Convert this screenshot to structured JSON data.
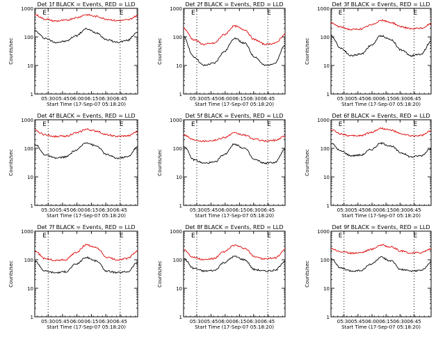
{
  "chart_data": [
    {
      "type": "line",
      "title": "Det 1f BLACK = Events, RED = LLD",
      "xlabel": "",
      "ylabel": "Counts/sec",
      "x_ticks": [
        "05:30",
        "05:45",
        "06:00",
        "06:15",
        "06:30",
        "06:45"
      ],
      "y_ticks": [
        "1",
        "10",
        "100",
        "1000"
      ],
      "y_scale": "log",
      "ylim": [
        1,
        1000
      ],
      "annotations": [
        "E",
        "E"
      ],
      "series": [
        {
          "color": "#000000",
          "x": [
            0,
            0.1,
            0.2,
            0.3,
            0.4,
            0.5,
            0.6,
            0.7,
            0.8,
            0.9,
            1
          ],
          "values": [
            160,
            90,
            65,
            70,
            110,
            190,
            140,
            80,
            65,
            75,
            150
          ]
        },
        {
          "color": "#dd0000",
          "x": [
            0,
            0.1,
            0.2,
            0.3,
            0.4,
            0.5,
            0.6,
            0.7,
            0.8,
            0.9,
            1
          ],
          "values": [
            600,
            420,
            360,
            380,
            470,
            600,
            520,
            420,
            370,
            390,
            550
          ]
        }
      ]
    },
    {
      "type": "line",
      "title": "Det 2f BLACK = Events, RED = LLD",
      "xlabel": "",
      "ylabel": "Counts/sec",
      "x_ticks": [
        "05:30",
        "05:45",
        "06:00",
        "06:15",
        "06:30",
        "06:45"
      ],
      "y_ticks": [
        "1",
        "10",
        "100",
        "1000"
      ],
      "y_scale": "log",
      "ylim": [
        1,
        1000
      ],
      "annotations": [
        "E",
        "E"
      ],
      "series": [
        {
          "color": "#000000",
          "x": [
            0,
            0.1,
            0.2,
            0.3,
            0.4,
            0.5,
            0.6,
            0.7,
            0.8,
            0.9,
            1
          ],
          "values": [
            100,
            20,
            10,
            12,
            30,
            90,
            60,
            20,
            10,
            12,
            50
          ]
        },
        {
          "color": "#dd0000",
          "x": [
            0,
            0.1,
            0.2,
            0.3,
            0.4,
            0.5,
            0.6,
            0.7,
            0.8,
            0.9,
            1
          ],
          "values": [
            200,
            80,
            55,
            60,
            120,
            240,
            180,
            80,
            55,
            60,
            120
          ]
        }
      ]
    },
    {
      "type": "line",
      "title": "Det 3f BLACK = Events, RED = LLD",
      "xlabel": "",
      "ylabel": "Counts/sec",
      "x_ticks": [
        "05:30",
        "05:45",
        "06:00",
        "06:15",
        "06:30",
        "06:45"
      ],
      "y_ticks": [
        "1",
        "10",
        "100",
        "1000"
      ],
      "y_scale": "log",
      "ylim": [
        1,
        1000
      ],
      "annotations": [
        "E",
        "E"
      ],
      "series": [
        {
          "color": "#000000",
          "x": [
            0,
            0.1,
            0.2,
            0.3,
            0.4,
            0.5,
            0.6,
            0.7,
            0.8,
            0.9,
            1
          ],
          "values": [
            110,
            40,
            22,
            25,
            50,
            110,
            80,
            35,
            22,
            25,
            70
          ]
        },
        {
          "color": "#dd0000",
          "x": [
            0,
            0.1,
            0.2,
            0.3,
            0.4,
            0.5,
            0.6,
            0.7,
            0.8,
            0.9,
            1
          ],
          "values": [
            300,
            220,
            180,
            190,
            260,
            380,
            320,
            230,
            190,
            200,
            280
          ]
        }
      ]
    },
    {
      "type": "line",
      "title": "Det 4f BLACK = Events, RED = LLD",
      "xlabel": "",
      "ylabel": "Counts/sec",
      "x_ticks": [
        "05:30",
        "05:45",
        "06:00",
        "06:15",
        "06:30",
        "06:45"
      ],
      "y_ticks": [
        "1",
        "10",
        "100",
        "1000"
      ],
      "y_scale": "log",
      "ylim": [
        1,
        1000
      ],
      "annotations": [
        "E",
        "E"
      ],
      "series": [
        {
          "color": "#000000",
          "x": [
            0,
            0.1,
            0.2,
            0.3,
            0.4,
            0.5,
            0.6,
            0.7,
            0.8,
            0.9,
            1
          ],
          "values": [
            140,
            60,
            45,
            50,
            85,
            160,
            120,
            60,
            45,
            50,
            110
          ]
        },
        {
          "color": "#dd0000",
          "x": [
            0,
            0.1,
            0.2,
            0.3,
            0.4,
            0.5,
            0.6,
            0.7,
            0.8,
            0.9,
            1
          ],
          "values": [
            420,
            300,
            260,
            270,
            340,
            460,
            400,
            300,
            260,
            270,
            380
          ]
        }
      ]
    },
    {
      "type": "line",
      "title": "Det 5f BLACK = Events, RED = LLD",
      "xlabel": "",
      "ylabel": "Counts/sec",
      "x_ticks": [
        "05:30",
        "05:45",
        "06:00",
        "06:15",
        "06:30",
        "06:45"
      ],
      "y_ticks": [
        "1",
        "10",
        "100",
        "1000"
      ],
      "y_scale": "log",
      "ylim": [
        1,
        1000
      ],
      "annotations": [
        "E",
        "E"
      ],
      "series": [
        {
          "color": "#000000",
          "x": [
            0,
            0.1,
            0.2,
            0.3,
            0.4,
            0.5,
            0.6,
            0.7,
            0.8,
            0.9,
            1
          ],
          "values": [
            120,
            40,
            30,
            32,
            60,
            140,
            100,
            40,
            30,
            32,
            90
          ]
        },
        {
          "color": "#dd0000",
          "x": [
            0,
            0.1,
            0.2,
            0.3,
            0.4,
            0.5,
            0.6,
            0.7,
            0.8,
            0.9,
            1
          ],
          "values": [
            300,
            200,
            180,
            190,
            240,
            340,
            290,
            210,
            180,
            190,
            270
          ]
        }
      ]
    },
    {
      "type": "line",
      "title": "Det 6f BLACK = Events, RED = LLD",
      "xlabel": "",
      "ylabel": "Counts/sec",
      "x_ticks": [
        "05:30",
        "05:45",
        "06:00",
        "06:15",
        "06:30",
        "06:45"
      ],
      "y_ticks": [
        "1",
        "10",
        "100",
        "1000"
      ],
      "y_scale": "log",
      "ylim": [
        1,
        1000
      ],
      "annotations": [
        "E",
        "E"
      ],
      "series": [
        {
          "color": "#000000",
          "x": [
            0,
            0.1,
            0.2,
            0.3,
            0.4,
            0.5,
            0.6,
            0.7,
            0.8,
            0.9,
            1
          ],
          "values": [
            150,
            80,
            55,
            58,
            90,
            150,
            120,
            70,
            50,
            55,
            100
          ]
        },
        {
          "color": "#dd0000",
          "x": [
            0,
            0.1,
            0.2,
            0.3,
            0.4,
            0.5,
            0.6,
            0.7,
            0.8,
            0.9,
            1
          ],
          "values": [
            450,
            320,
            270,
            280,
            360,
            500,
            430,
            320,
            270,
            280,
            400
          ]
        }
      ]
    },
    {
      "type": "line",
      "title": "Det 7f BLACK = Events, RED = LLD",
      "xlabel": "",
      "ylabel": "Counts/sec",
      "x_ticks": [
        "05:30",
        "05:45",
        "06:00",
        "06:15",
        "06:30",
        "06:45"
      ],
      "y_ticks": [
        "1",
        "10",
        "100",
        "1000"
      ],
      "y_scale": "log",
      "ylim": [
        1,
        1000
      ],
      "annotations": [
        "E",
        "E"
      ],
      "series": [
        {
          "color": "#000000",
          "x": [
            0,
            0.1,
            0.2,
            0.3,
            0.4,
            0.5,
            0.6,
            0.7,
            0.8,
            0.9,
            1
          ],
          "values": [
            90,
            40,
            35,
            38,
            70,
            120,
            90,
            40,
            35,
            38,
            80
          ]
        },
        {
          "color": "#dd0000",
          "x": [
            0,
            0.1,
            0.2,
            0.3,
            0.4,
            0.5,
            0.6,
            0.7,
            0.8,
            0.9,
            1
          ],
          "values": [
            200,
            110,
            95,
            100,
            180,
            330,
            260,
            120,
            100,
            110,
            200
          ]
        }
      ]
    },
    {
      "type": "line",
      "title": "Det 8f BLACK = Events, RED = LLD",
      "xlabel": "",
      "ylabel": "Counts/sec",
      "x_ticks": [
        "05:30",
        "05:45",
        "06:00",
        "06:15",
        "06:30",
        "06:45"
      ],
      "y_ticks": [
        "1",
        "10",
        "100",
        "1000"
      ],
      "y_scale": "log",
      "ylim": [
        1,
        1000
      ],
      "annotations": [
        "E",
        "E"
      ],
      "series": [
        {
          "color": "#000000",
          "x": [
            0,
            0.1,
            0.2,
            0.3,
            0.4,
            0.5,
            0.6,
            0.7,
            0.8,
            0.9,
            1
          ],
          "values": [
            110,
            50,
            40,
            42,
            80,
            130,
            100,
            45,
            40,
            42,
            90
          ]
        },
        {
          "color": "#dd0000",
          "x": [
            0,
            0.1,
            0.2,
            0.3,
            0.4,
            0.5,
            0.6,
            0.7,
            0.8,
            0.9,
            1
          ],
          "values": [
            230,
            120,
            100,
            110,
            190,
            320,
            250,
            130,
            105,
            115,
            220
          ]
        }
      ]
    },
    {
      "type": "line",
      "title": "Det 9f BLACK = Events, RED = LLD",
      "xlabel": "",
      "ylabel": "Counts/sec",
      "x_ticks": [
        "05:30",
        "05:45",
        "06:00",
        "06:15",
        "06:30",
        "06:45"
      ],
      "y_ticks": [
        "1",
        "10",
        "100",
        "1000"
      ],
      "y_scale": "log",
      "ylim": [
        1,
        1000
      ],
      "annotations": [
        "E",
        "E"
      ],
      "series": [
        {
          "color": "#000000",
          "x": [
            0,
            0.1,
            0.2,
            0.3,
            0.4,
            0.5,
            0.6,
            0.7,
            0.8,
            0.9,
            1
          ],
          "values": [
            110,
            50,
            40,
            42,
            70,
            120,
            90,
            45,
            40,
            42,
            80
          ]
        },
        {
          "color": "#dd0000",
          "x": [
            0,
            0.1,
            0.2,
            0.3,
            0.4,
            0.5,
            0.6,
            0.7,
            0.8,
            0.9,
            1
          ],
          "values": [
            250,
            190,
            170,
            180,
            230,
            330,
            280,
            200,
            170,
            180,
            240
          ]
        }
      ]
    }
  ],
  "shared": {
    "xaxis_title": "Start Time (17-Sep-07 05:18:20)"
  }
}
